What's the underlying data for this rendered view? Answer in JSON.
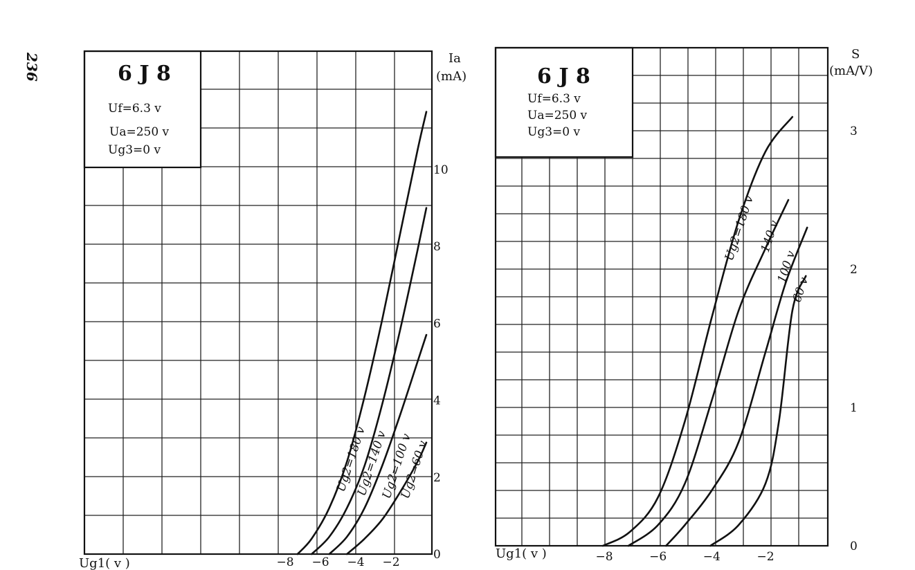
{
  "page": {
    "number": "236"
  },
  "chart_data": [
    {
      "type": "line",
      "title": "6 J 8",
      "params": [
        "Uf=6.3 v",
        "Ua=250 v",
        "Ug3=0 v"
      ],
      "xlabel": "Ug1( v )",
      "ylabel_lines": [
        "Ia",
        "(mA)"
      ],
      "xlim": [
        -8.5,
        0.2
      ],
      "ylim": [
        0,
        13
      ],
      "x_ticks": [
        {
          "v": -8,
          "label": "−8"
        },
        {
          "v": -6,
          "label": "−6"
        },
        {
          "v": -4,
          "label": "−4"
        },
        {
          "v": -2,
          "label": "−2"
        }
      ],
      "y_ticks": [
        {
          "v": 0,
          "label": "0"
        },
        {
          "v": 2,
          "label": "2"
        },
        {
          "v": 4,
          "label": "4"
        },
        {
          "v": 6,
          "label": "6"
        },
        {
          "v": 8,
          "label": "8"
        },
        {
          "v": 10,
          "label": "10"
        }
      ],
      "series": [
        {
          "name": "Ug2=180 v",
          "x": [
            -7.3,
            -6.5,
            -5.5,
            -4.5,
            -3.5,
            -2.5,
            -1.5,
            -0.5,
            0
          ],
          "y": [
            0,
            0.4,
            1.2,
            2.4,
            4.1,
            6.1,
            8.3,
            10.5,
            11.5
          ]
        },
        {
          "name": "Ug2=140 v",
          "x": [
            -6.5,
            -5.5,
            -4.5,
            -3.5,
            -2.5,
            -1.5,
            -0.5,
            0
          ],
          "y": [
            0,
            0.45,
            1.2,
            2.3,
            3.9,
            5.8,
            7.9,
            9.0
          ]
        },
        {
          "name": "Ug2=100 v",
          "x": [
            -5.5,
            -4.5,
            -3.5,
            -2.5,
            -1.5,
            -0.5,
            0
          ],
          "y": [
            0,
            0.45,
            1.2,
            2.3,
            3.6,
            5.0,
            5.7
          ]
        },
        {
          "name": "Ug2=60 v",
          "x": [
            -4.5,
            -3.5,
            -2.5,
            -1.5,
            -0.5,
            0
          ],
          "y": [
            0,
            0.4,
            0.9,
            1.6,
            2.4,
            2.9
          ]
        }
      ]
    },
    {
      "type": "line",
      "title": "6 J 8",
      "params": [
        "Uf=6.3 v",
        "Ua=250 v",
        "Ug3=0 v"
      ],
      "xlabel": "Ug1( v )",
      "ylabel_lines": [
        "S",
        "(mA/V)"
      ],
      "xlim": [
        -11,
        0.75
      ],
      "ylim": [
        0,
        3.6
      ],
      "x_ticks": [
        {
          "v": -8,
          "label": "−8"
        },
        {
          "v": -6,
          "label": "−6"
        },
        {
          "v": -4,
          "label": "−4"
        },
        {
          "v": -2,
          "label": "−2"
        }
      ],
      "y_ticks": [
        {
          "v": 0,
          "label": "0"
        },
        {
          "v": 1,
          "label": "1"
        },
        {
          "v": 2,
          "label": "2"
        },
        {
          "v": 3,
          "label": "3"
        }
      ],
      "series": [
        {
          "name": "Ug2=180 v",
          "x": [
            -8.05,
            -7.05,
            -6,
            -5,
            -4,
            -3,
            -2,
            -1
          ],
          "y": [
            0,
            0.1,
            0.35,
            0.9,
            1.65,
            2.35,
            2.85,
            3.1
          ]
        },
        {
          "name": "140 v",
          "x": [
            -7.1,
            -6,
            -5,
            -4,
            -3,
            -2,
            -1.15
          ],
          "y": [
            0,
            0.15,
            0.45,
            1.05,
            1.7,
            2.15,
            2.5
          ]
        },
        {
          "name": "100 v",
          "x": [
            -5.7,
            -5,
            -4,
            -3,
            -2,
            -1.25,
            -0.45
          ],
          "y": [
            0,
            0.15,
            0.4,
            0.75,
            1.4,
            1.9,
            2.3
          ]
        },
        {
          "name": "60 v",
          "x": [
            -4.05,
            -3,
            -2,
            -1.5,
            -1,
            -0.5
          ],
          "y": [
            0,
            0.15,
            0.45,
            0.9,
            1.7,
            1.95
          ]
        }
      ]
    }
  ]
}
